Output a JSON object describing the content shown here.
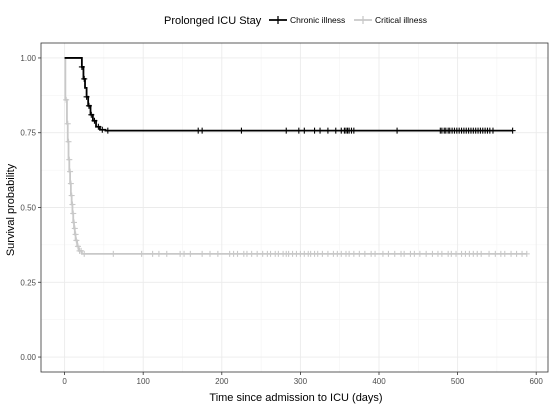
{
  "chart_data": {
    "type": "line",
    "xlabel": "Time since admission to ICU (days)",
    "ylabel": "Survival probability",
    "xlim": [
      -30,
      615
    ],
    "ylim": [
      -0.05,
      1.05
    ],
    "x_ticks": [
      0,
      100,
      200,
      300,
      400,
      500,
      600
    ],
    "y_ticks": [
      0.0,
      0.25,
      0.5,
      0.75,
      1.0
    ],
    "y_tick_labels": [
      "0.00",
      "0.25",
      "0.50",
      "0.75",
      "1.00"
    ],
    "x_tick_labels": [
      "0",
      "100",
      "200",
      "300",
      "400",
      "500",
      "600"
    ],
    "grid": true,
    "legend": {
      "title": "Prolonged ICU Stay",
      "position": "top",
      "entries": [
        "Chronic illness",
        "Critical illness"
      ]
    },
    "series": [
      {
        "name": "Chronic illness",
        "color": "#000000",
        "steps": [
          [
            0,
            1.0
          ],
          [
            20,
            1.0
          ],
          [
            22,
            0.97
          ],
          [
            24,
            0.93
          ],
          [
            26,
            0.9
          ],
          [
            28,
            0.87
          ],
          [
            30,
            0.84
          ],
          [
            33,
            0.81
          ],
          [
            36,
            0.79
          ],
          [
            40,
            0.77
          ],
          [
            45,
            0.76
          ],
          [
            52,
            0.757
          ],
          [
            570,
            0.757
          ]
        ],
        "censored": [
          [
            22,
            0.97
          ],
          [
            25,
            0.93
          ],
          [
            28,
            0.87
          ],
          [
            31,
            0.84
          ],
          [
            34,
            0.81
          ],
          [
            38,
            0.79
          ],
          [
            43,
            0.77
          ],
          [
            48,
            0.76
          ],
          [
            55,
            0.757
          ],
          [
            170,
            0.757
          ],
          [
            175,
            0.757
          ],
          [
            225,
            0.757
          ],
          [
            282,
            0.757
          ],
          [
            298,
            0.757
          ],
          [
            305,
            0.757
          ],
          [
            318,
            0.757
          ],
          [
            325,
            0.757
          ],
          [
            335,
            0.757
          ],
          [
            345,
            0.757
          ],
          [
            352,
            0.757
          ],
          [
            356,
            0.757
          ],
          [
            358,
            0.757
          ],
          [
            360,
            0.757
          ],
          [
            362,
            0.757
          ],
          [
            365,
            0.757
          ],
          [
            368,
            0.757
          ],
          [
            423,
            0.757
          ],
          [
            478,
            0.757
          ],
          [
            480,
            0.757
          ],
          [
            483,
            0.757
          ],
          [
            485,
            0.757
          ],
          [
            488,
            0.757
          ],
          [
            490,
            0.757
          ],
          [
            493,
            0.757
          ],
          [
            496,
            0.757
          ],
          [
            499,
            0.757
          ],
          [
            502,
            0.757
          ],
          [
            505,
            0.757
          ],
          [
            508,
            0.757
          ],
          [
            511,
            0.757
          ],
          [
            514,
            0.757
          ],
          [
            517,
            0.757
          ],
          [
            520,
            0.757
          ],
          [
            523,
            0.757
          ],
          [
            526,
            0.757
          ],
          [
            529,
            0.757
          ],
          [
            532,
            0.757
          ],
          [
            535,
            0.757
          ],
          [
            538,
            0.757
          ],
          [
            541,
            0.757
          ],
          [
            545,
            0.757
          ],
          [
            570,
            0.757
          ]
        ]
      },
      {
        "name": "Critical illness",
        "color": "#c8c8c8",
        "steps": [
          [
            0,
            1.0
          ],
          [
            1,
            0.86
          ],
          [
            3,
            0.78
          ],
          [
            4,
            0.72
          ],
          [
            5,
            0.66
          ],
          [
            6,
            0.62
          ],
          [
            7,
            0.58
          ],
          [
            8,
            0.54
          ],
          [
            9,
            0.51
          ],
          [
            10,
            0.48
          ],
          [
            11,
            0.45
          ],
          [
            12,
            0.43
          ],
          [
            13,
            0.41
          ],
          [
            14,
            0.39
          ],
          [
            16,
            0.37
          ],
          [
            18,
            0.355
          ],
          [
            22,
            0.345
          ],
          [
            588,
            0.345
          ]
        ],
        "censored": [
          [
            2,
            0.86
          ],
          [
            4,
            0.78
          ],
          [
            5,
            0.72
          ],
          [
            6,
            0.66
          ],
          [
            7,
            0.62
          ],
          [
            8,
            0.58
          ],
          [
            9,
            0.54
          ],
          [
            10,
            0.51
          ],
          [
            11,
            0.48
          ],
          [
            12,
            0.45
          ],
          [
            13,
            0.43
          ],
          [
            14,
            0.41
          ],
          [
            15,
            0.39
          ],
          [
            17,
            0.37
          ],
          [
            19,
            0.355
          ],
          [
            21,
            0.355
          ],
          [
            25,
            0.345
          ],
          [
            62,
            0.345
          ],
          [
            98,
            0.345
          ],
          [
            112,
            0.345
          ],
          [
            120,
            0.345
          ],
          [
            130,
            0.345
          ],
          [
            147,
            0.345
          ],
          [
            152,
            0.345
          ],
          [
            160,
            0.345
          ],
          [
            175,
            0.345
          ],
          [
            185,
            0.345
          ],
          [
            195,
            0.345
          ],
          [
            210,
            0.345
          ],
          [
            215,
            0.345
          ],
          [
            220,
            0.345
          ],
          [
            228,
            0.345
          ],
          [
            232,
            0.345
          ],
          [
            238,
            0.345
          ],
          [
            245,
            0.345
          ],
          [
            252,
            0.345
          ],
          [
            258,
            0.345
          ],
          [
            262,
            0.345
          ],
          [
            268,
            0.345
          ],
          [
            272,
            0.345
          ],
          [
            278,
            0.345
          ],
          [
            282,
            0.345
          ],
          [
            285,
            0.345
          ],
          [
            290,
            0.345
          ],
          [
            295,
            0.345
          ],
          [
            300,
            0.345
          ],
          [
            305,
            0.345
          ],
          [
            310,
            0.345
          ],
          [
            313,
            0.345
          ],
          [
            318,
            0.345
          ],
          [
            322,
            0.345
          ],
          [
            328,
            0.345
          ],
          [
            335,
            0.345
          ],
          [
            342,
            0.345
          ],
          [
            347,
            0.345
          ],
          [
            352,
            0.345
          ],
          [
            358,
            0.345
          ],
          [
            362,
            0.345
          ],
          [
            368,
            0.345
          ],
          [
            375,
            0.345
          ],
          [
            382,
            0.345
          ],
          [
            390,
            0.345
          ],
          [
            395,
            0.345
          ],
          [
            405,
            0.345
          ],
          [
            412,
            0.345
          ],
          [
            420,
            0.345
          ],
          [
            428,
            0.345
          ],
          [
            432,
            0.345
          ],
          [
            440,
            0.345
          ],
          [
            445,
            0.345
          ],
          [
            452,
            0.345
          ],
          [
            460,
            0.345
          ],
          [
            468,
            0.345
          ],
          [
            475,
            0.345
          ],
          [
            480,
            0.345
          ],
          [
            488,
            0.345
          ],
          [
            492,
            0.345
          ],
          [
            498,
            0.345
          ],
          [
            505,
            0.345
          ],
          [
            510,
            0.345
          ],
          [
            515,
            0.345
          ],
          [
            520,
            0.345
          ],
          [
            525,
            0.345
          ],
          [
            530,
            0.345
          ],
          [
            540,
            0.345
          ],
          [
            548,
            0.345
          ],
          [
            555,
            0.345
          ],
          [
            560,
            0.345
          ],
          [
            568,
            0.345
          ],
          [
            575,
            0.345
          ],
          [
            582,
            0.345
          ],
          [
            588,
            0.345
          ]
        ]
      }
    ]
  }
}
